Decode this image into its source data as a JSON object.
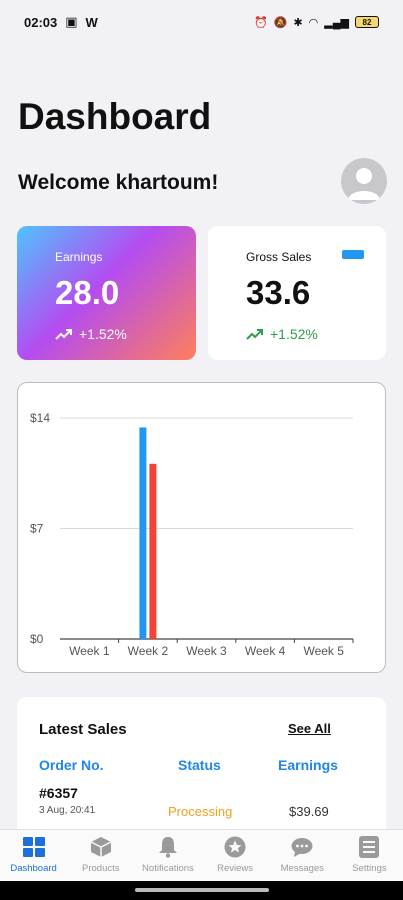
{
  "status_bar": {
    "time": "02:03",
    "battery": "82"
  },
  "header": {
    "title": "Dashboard",
    "welcome": "Welcome khartoum!"
  },
  "earnings_card": {
    "label": "Earnings",
    "value": "28.0",
    "trend": "+1.52%"
  },
  "gross_card": {
    "label": "Gross Sales",
    "value": "33.6",
    "trend": "+1.52%"
  },
  "colors": {
    "accent": "#1e88e5",
    "series_blue": "#2196f3",
    "series_red": "#f44336",
    "processing": "#f0a020",
    "trend_green": "#2e9e4a"
  },
  "chart_data": {
    "type": "bar",
    "categories": [
      "Week 1",
      "Week 2",
      "Week 3",
      "Week 4",
      "Week 5"
    ],
    "series": [
      {
        "values": [
          0,
          13.4,
          0,
          0,
          0
        ],
        "color": "#2196f3"
      },
      {
        "values": [
          0,
          11.1,
          0,
          0,
          0
        ],
        "color": "#f44336"
      }
    ],
    "ylim": [
      0,
      14
    ],
    "yticks": [
      "$0",
      "$7",
      "$14"
    ],
    "grid": true
  },
  "latest_sales": {
    "title": "Latest Sales",
    "see_all": "See All",
    "columns": [
      "Order No.",
      "Status",
      "Earnings"
    ],
    "rows": [
      {
        "order": "#6357",
        "date": "3 Aug, 20:41",
        "status": "Processing",
        "earnings": "$39.69"
      }
    ]
  },
  "bottom_nav": {
    "items": [
      {
        "label": "Dashboard",
        "icon": "dashboard-grid-icon"
      },
      {
        "label": "Products",
        "icon": "cube-icon"
      },
      {
        "label": "Notifications",
        "icon": "bell-icon"
      },
      {
        "label": "Reviews",
        "icon": "star-icon"
      },
      {
        "label": "Messages",
        "icon": "chat-icon"
      },
      {
        "label": "Settings",
        "icon": "settings-icon"
      }
    ]
  }
}
